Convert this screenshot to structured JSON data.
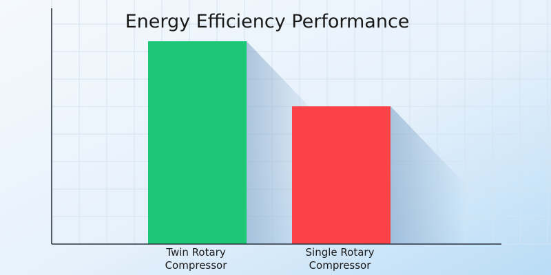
{
  "chart_data": {
    "type": "bar",
    "title": "Energy Efficiency Performance",
    "xlabel": "",
    "ylabel": "",
    "categories": [
      "Twin Rotary Compressor",
      "Single Rotary Compressor"
    ],
    "category_lines": [
      [
        "Twin Rotary",
        "Compressor"
      ],
      [
        "Single Rotary",
        "Compressor"
      ]
    ],
    "values": [
      100,
      68
    ],
    "ylim": [
      0,
      100
    ],
    "grid": true,
    "bar_colors": [
      "#1ec776",
      "#fc4249"
    ],
    "shadow_color": "#7a9fc4"
  },
  "theme": {
    "background_from": "#f5f9fd",
    "background_mid": "#e6f1fb",
    "background_to": "#b9dcf6",
    "grid_color": "#d5e3f0",
    "axis_color": "#2b3340",
    "text_color": "#1a1a1a"
  }
}
